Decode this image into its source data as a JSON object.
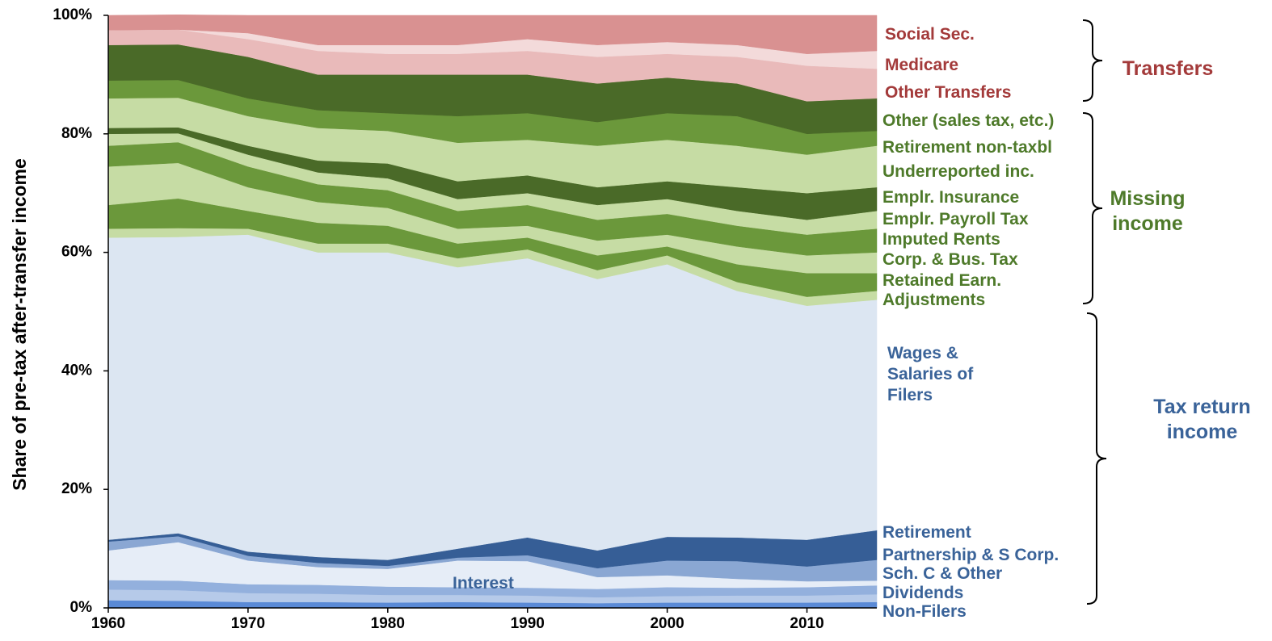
{
  "chart_data": {
    "type": "stacked_area",
    "y_label": "Share of pre-tax after-transfer income",
    "x": [
      1960,
      1965,
      1970,
      1975,
      1980,
      1985,
      1990,
      1995,
      2000,
      2005,
      2010,
      2015
    ],
    "xlim": [
      1960,
      2015
    ],
    "xticks": [
      1960,
      1970,
      1980,
      1990,
      2000,
      2010
    ],
    "ylim": [
      0,
      100
    ],
    "yticks": [
      {
        "value": 0,
        "label": "0%"
      },
      {
        "value": 20,
        "label": "20%"
      },
      {
        "value": 40,
        "label": "40%"
      },
      {
        "value": 60,
        "label": "60%"
      },
      {
        "value": 80,
        "label": "80%"
      },
      {
        "value": 100,
        "label": "100%"
      }
    ],
    "series": [
      {
        "name": "Non-Filers",
        "color": "#5a8ad6",
        "values": [
          1.3,
          1.2,
          1.0,
          1.0,
          0.9,
          1.0,
          0.9,
          0.8,
          0.9,
          0.9,
          0.9,
          1.0
        ]
      },
      {
        "name": "Dividends",
        "color": "#b6cae9",
        "values": [
          1.8,
          1.8,
          1.5,
          1.4,
          1.3,
          1.2,
          1.2,
          1.0,
          1.1,
          1.2,
          1.2,
          1.3
        ]
      },
      {
        "name": "Sch. C & Other",
        "color": "#93b0dd",
        "values": [
          1.6,
          1.6,
          1.5,
          1.5,
          1.4,
          1.3,
          1.3,
          1.4,
          1.5,
          1.3,
          1.4,
          1.5
        ]
      },
      {
        "name": "Interest",
        "color": "#e6edf7",
        "values": [
          5,
          6.5,
          4,
          3,
          3,
          4.5,
          4.5,
          2,
          2,
          1.5,
          1,
          0.8
        ]
      },
      {
        "name": "Partnership & S Corp.",
        "color": "#8aa7d3",
        "values": [
          1.5,
          1,
          0.8,
          0.7,
          0.5,
          0.5,
          1,
          1.5,
          2.5,
          3,
          2.5,
          3.5
        ]
      },
      {
        "name": "Retirement",
        "color": "#365e96",
        "values": [
          0.3,
          0.5,
          0.7,
          1,
          1,
          1.5,
          3,
          3,
          4,
          4,
          4.5,
          5
        ]
      },
      {
        "name": "Wages & Salaries of Filers",
        "color": "#dce6f2",
        "values": [
          51,
          50,
          53.5,
          51.4,
          51.9,
          47.5,
          47.1,
          45.8,
          46,
          41.6,
          39.5,
          38.9
        ]
      },
      {
        "name": "Adjustments",
        "color": "#c6dca4",
        "values": [
          1.5,
          1.5,
          1,
          1.5,
          1.5,
          1.5,
          1.5,
          1.5,
          1.5,
          1.5,
          1.5,
          1.5
        ]
      },
      {
        "name": "Retained Earn.",
        "color": "#6b983b",
        "values": [
          4,
          5,
          3,
          3.5,
          3,
          2.5,
          2,
          2.5,
          1.5,
          3,
          4,
          3
        ]
      },
      {
        "name": "Corp. & Bus. Tax",
        "color": "#c6dca4",
        "values": [
          6.5,
          6,
          4,
          3.5,
          3,
          2.5,
          2,
          2.5,
          2,
          3,
          3,
          3.5
        ]
      },
      {
        "name": "Imputed Rents",
        "color": "#6b983b",
        "values": [
          3.5,
          3.5,
          3.5,
          3,
          3,
          3,
          3.5,
          3.5,
          3.5,
          3.5,
          3.5,
          4
        ]
      },
      {
        "name": "Emplr. Payroll Tax",
        "color": "#c6dca4",
        "values": [
          2,
          1.5,
          2,
          2,
          2,
          2,
          2,
          2.5,
          2.5,
          2.5,
          2.5,
          3
        ]
      },
      {
        "name": "Emplr. Insurance",
        "color": "#4a6a28",
        "values": [
          1,
          1,
          1.5,
          2,
          2.5,
          3,
          3,
          3,
          3,
          4,
          4.5,
          4
        ]
      },
      {
        "name": "Underreported inc.",
        "color": "#c6dca4",
        "values": [
          5,
          5,
          5,
          5.5,
          5.5,
          6.5,
          6,
          7,
          7,
          7,
          6.5,
          7
        ]
      },
      {
        "name": "Retirement non-taxbl",
        "color": "#6b983b",
        "values": [
          3,
          3,
          3,
          3,
          3,
          4.5,
          4.5,
          4,
          4.5,
          5,
          3.5,
          2.5
        ]
      },
      {
        "name": "Other (sales tax, etc.)",
        "color": "#4a6a28",
        "values": [
          6,
          6,
          7,
          6,
          6.5,
          7,
          6.5,
          6.5,
          6,
          5.5,
          5.5,
          5.5
        ]
      },
      {
        "name": "Other Transfers",
        "color": "#e9baba",
        "values": [
          2.5,
          2.5,
          3,
          4,
          3.5,
          3.5,
          4,
          4.5,
          4,
          4.5,
          6,
          5
        ]
      },
      {
        "name": "Medicare",
        "color": "#f3dada",
        "values": [
          0,
          0,
          1,
          1,
          1.5,
          1.5,
          2,
          2,
          2,
          2,
          2,
          3
        ]
      },
      {
        "name": "Social Sec.",
        "color": "#d99191",
        "values": [
          2.5,
          2.5,
          3,
          5,
          5,
          5,
          4,
          5,
          4.5,
          5,
          6.5,
          6
        ]
      }
    ],
    "groups": [
      {
        "label": "Transfers",
        "color": "#a33a3a"
      },
      {
        "label": "Missing income",
        "color": "#4e7a2a"
      },
      {
        "label": "Tax return income",
        "color": "#3a6399"
      }
    ]
  }
}
